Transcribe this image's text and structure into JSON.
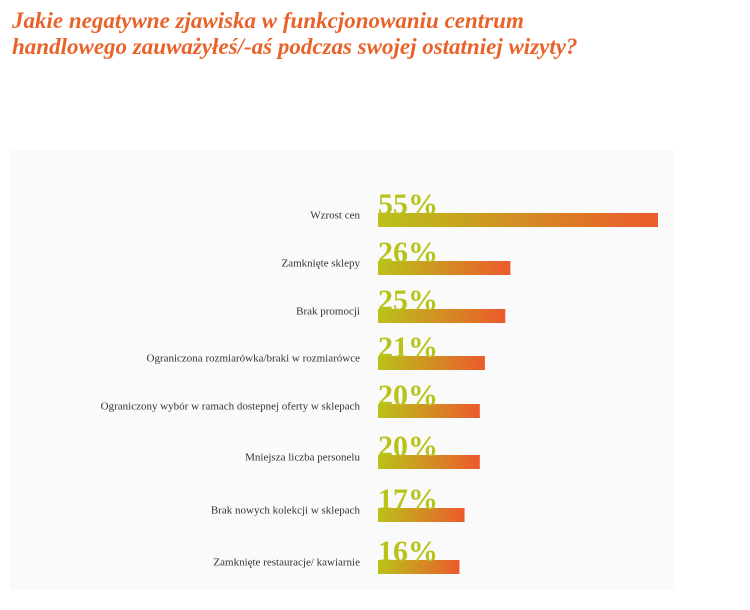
{
  "chart_data": {
    "type": "bar",
    "orientation": "horizontal",
    "title": "Jakie negatywne zjawiska w funkcjonowaniu centrum handlowego zauważyłeś/-aś podczas swojej ostatniej wizyty?",
    "categories": [
      "Wzrost cen",
      "Zamknięte sklepy",
      "Brak promocji",
      "Ograniczona rozmiarówka/braki w rozmiarówce",
      "Ograniczony wybór w ramach dostepnej oferty w sklepach",
      "Mniejsza liczba personelu",
      "Brak nowych kolekcji w sklepach",
      "Zamknięte restauracje/ kawiarnie"
    ],
    "values": [
      55,
      26,
      25,
      21,
      20,
      20,
      17,
      16
    ],
    "value_labels": [
      "55%",
      "26%",
      "25%",
      "21%",
      "20%",
      "20%",
      "17%",
      "16%"
    ],
    "colors": [
      "#b9c21a",
      "#ec5a2c"
    ]
  }
}
